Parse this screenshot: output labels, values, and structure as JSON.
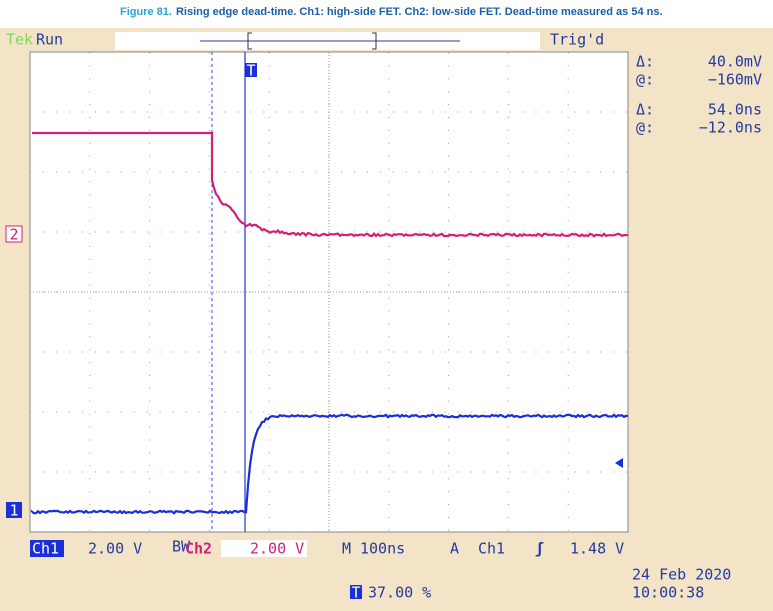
{
  "caption": {
    "figure": "Figure 81.",
    "text": "Rising edge dead-time. Ch1: high-side FET. Ch2: low-side FET. Dead-time measured as 54 ns."
  },
  "top_bar": {
    "brand": "Tek",
    "status": "Run",
    "trigger_state": "Trig'd"
  },
  "readouts": [
    {
      "symbol": "Δ:",
      "value": "40.0mV"
    },
    {
      "symbol": "@:",
      "value": "−160mV"
    },
    {
      "symbol": "Δ:",
      "value": "54.0ns"
    },
    {
      "symbol": "@:",
      "value": "−12.0ns"
    }
  ],
  "markers": {
    "ch2": "2",
    "ch1": "1",
    "trigger": "T"
  },
  "bottom_bar": {
    "ch1_label": "Ch1",
    "ch1_scale": "2.00 V",
    "bw": "BW",
    "ch2_label": "Ch2",
    "ch2_scale": "2.00 V",
    "timebase_label": "M",
    "timebase": "100ns",
    "trigger_label": "A",
    "trigger_source": "Ch1",
    "trigger_slope": "ʃ",
    "trigger_level": "1.48 V"
  },
  "footer": {
    "position_icon": "T",
    "position": "37.00 %",
    "date": "24 Feb 2020",
    "time": "10:00:38"
  }
}
